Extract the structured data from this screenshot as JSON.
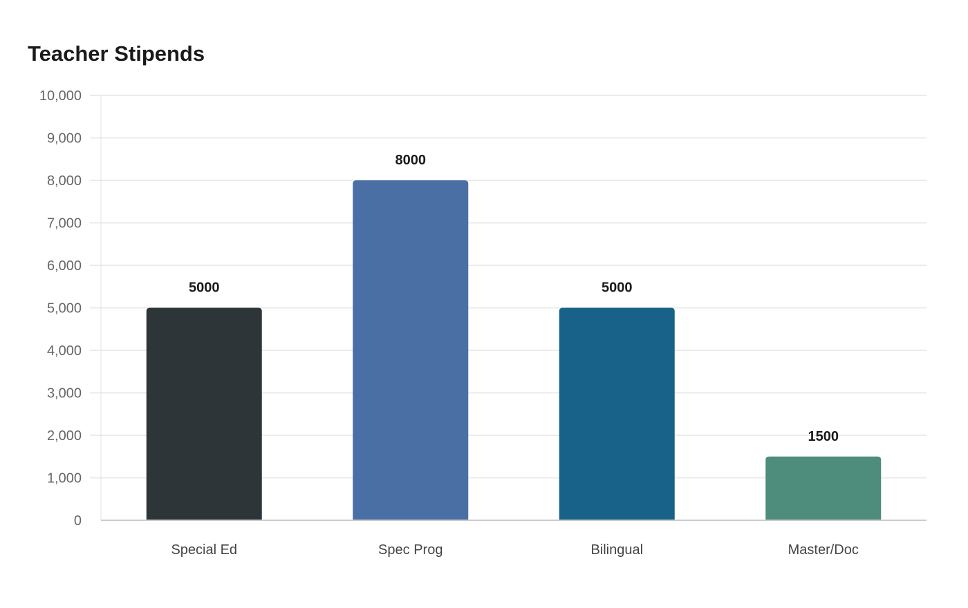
{
  "header": {
    "title": "Teacher Stipends"
  },
  "chart_data": {
    "type": "bar",
    "title": "Teacher Stipends",
    "xlabel": "",
    "ylabel": "",
    "categories": [
      "Special Ed",
      "Spec Prog",
      "Bilingual",
      "Master/Doc"
    ],
    "values": [
      5000,
      8000,
      5000,
      1500
    ],
    "value_labels": [
      "5000",
      "8000",
      "5000",
      "1500"
    ],
    "colors": [
      "#2e3538",
      "#4a6fa5",
      "#186289",
      "#4e8c7b"
    ],
    "ylim": [
      0,
      10000
    ],
    "yticks": [
      0,
      1000,
      2000,
      3000,
      4000,
      5000,
      6000,
      7000,
      8000,
      9000,
      10000
    ],
    "ytick_labels": [
      "0",
      "1,000",
      "2,000",
      "3,000",
      "4,000",
      "5,000",
      "6,000",
      "7,000",
      "8,000",
      "9,000",
      "10,000"
    ],
    "grid": true,
    "legend": false
  }
}
